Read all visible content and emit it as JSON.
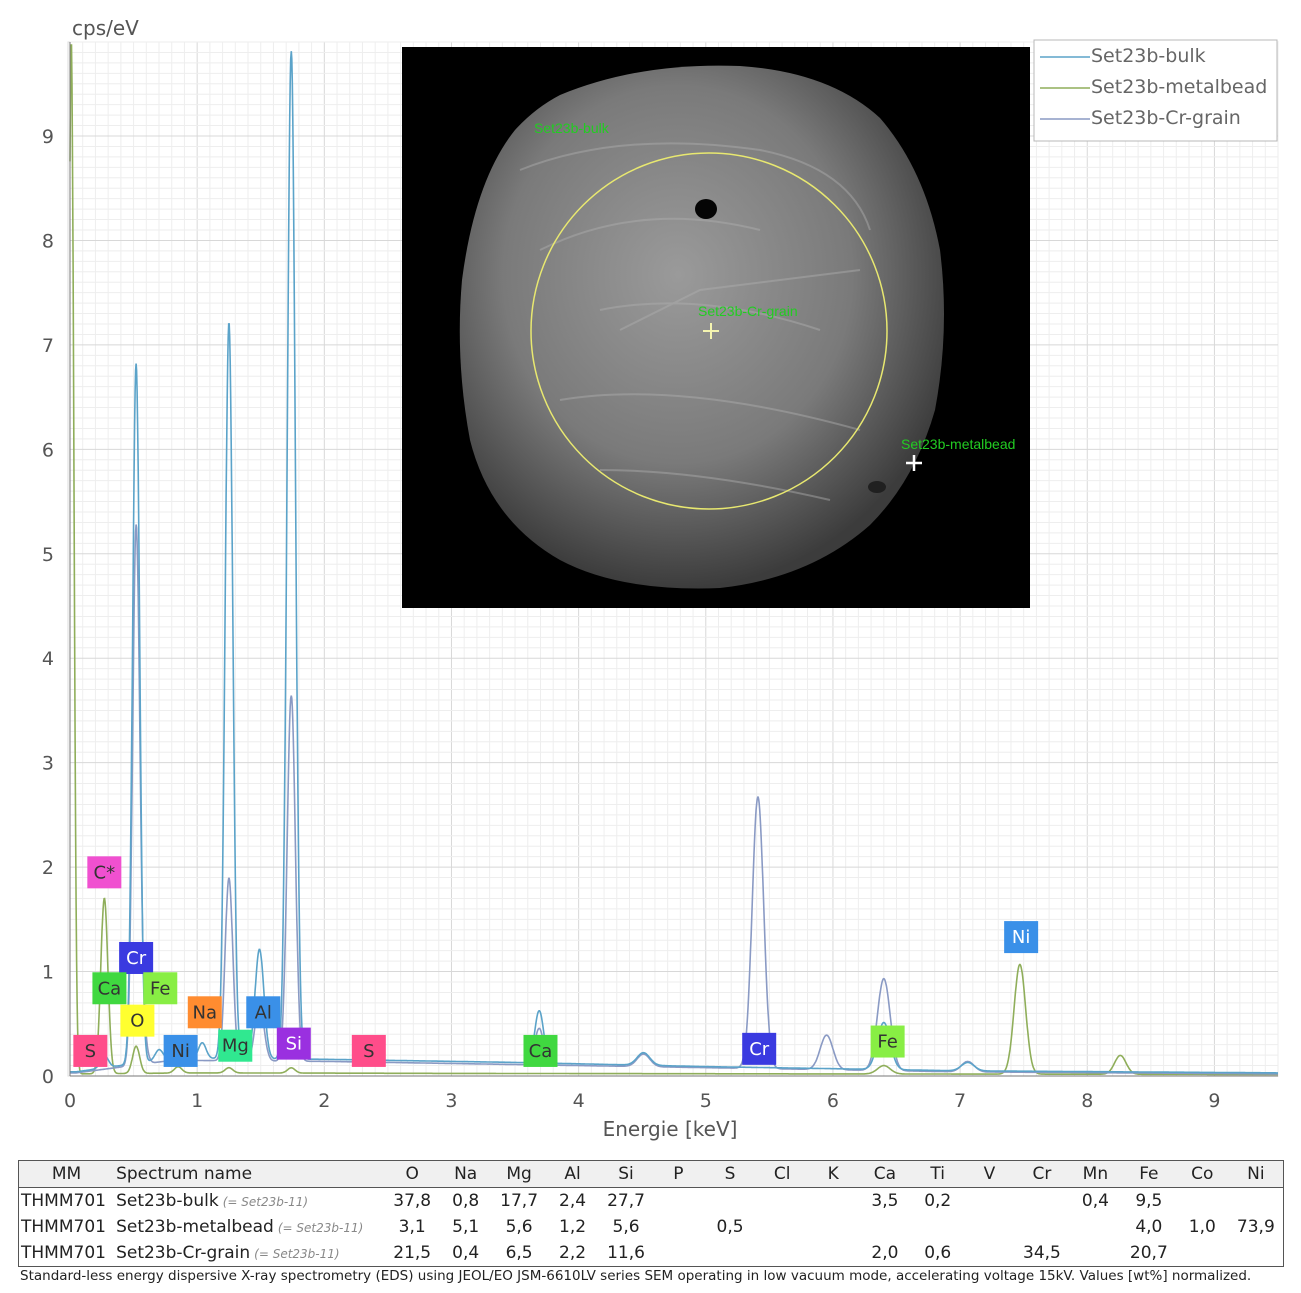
{
  "chart_data": {
    "type": "line",
    "xlabel": "Energie [keV]",
    "ylabel": "cps/eV",
    "xlim": [
      0,
      9.5
    ],
    "ylim": [
      0,
      9.9
    ],
    "xticks": [
      0,
      1,
      2,
      3,
      4,
      5,
      6,
      7,
      8,
      9
    ],
    "yticks": [
      0,
      1,
      2,
      3,
      4,
      5,
      6,
      7,
      8,
      9
    ],
    "grid": true,
    "legend_position": "top-right",
    "series": [
      {
        "name": "Set23b-bulk",
        "color": "#5ba3c9",
        "baseline": [
          [
            0.05,
            0.04
          ],
          [
            0.8,
            0.17
          ],
          [
            2.0,
            0.16
          ],
          [
            3.5,
            0.13
          ],
          [
            5.0,
            0.09
          ],
          [
            7.0,
            0.05
          ],
          [
            9.5,
            0.03
          ]
        ],
        "peaks": [
          {
            "x": 0.52,
            "y": 6.7,
            "w": 0.028
          },
          {
            "x": 0.27,
            "y": 0.12,
            "w": 0.03
          },
          {
            "x": 0.7,
            "y": 0.1,
            "w": 0.03
          },
          {
            "x": 1.04,
            "y": 0.15,
            "w": 0.03
          },
          {
            "x": 1.25,
            "y": 7.05,
            "w": 0.03
          },
          {
            "x": 1.49,
            "y": 1.05,
            "w": 0.035
          },
          {
            "x": 1.74,
            "y": 9.65,
            "w": 0.032
          },
          {
            "x": 3.69,
            "y": 0.5,
            "w": 0.035
          },
          {
            "x": 4.51,
            "y": 0.12,
            "w": 0.05
          },
          {
            "x": 6.4,
            "y": 0.45,
            "w": 0.05
          },
          {
            "x": 7.06,
            "y": 0.08,
            "w": 0.05
          }
        ]
      },
      {
        "name": "Set23b-metalbead",
        "color": "#8fae5a",
        "baseline": [
          [
            0.05,
            0.02
          ],
          [
            1.0,
            0.03
          ],
          [
            3.0,
            0.025
          ],
          [
            6.0,
            0.02
          ],
          [
            9.5,
            0.015
          ]
        ],
        "peaks": [
          {
            "x": 0.01,
            "y": 9.9,
            "w": 0.02
          },
          {
            "x": 0.27,
            "y": 1.68,
            "w": 0.028
          },
          {
            "x": 0.52,
            "y": 0.26,
            "w": 0.028
          },
          {
            "x": 0.85,
            "y": 0.06,
            "w": 0.03
          },
          {
            "x": 1.25,
            "y": 0.05,
            "w": 0.03
          },
          {
            "x": 1.74,
            "y": 0.05,
            "w": 0.03
          },
          {
            "x": 6.4,
            "y": 0.08,
            "w": 0.05
          },
          {
            "x": 7.47,
            "y": 1.05,
            "w": 0.045
          },
          {
            "x": 8.26,
            "y": 0.18,
            "w": 0.045
          }
        ]
      },
      {
        "name": "Set23b-Cr-grain",
        "color": "#8a9ac4",
        "baseline": [
          [
            0.05,
            0.03
          ],
          [
            0.8,
            0.15
          ],
          [
            2.0,
            0.14
          ],
          [
            3.5,
            0.11
          ],
          [
            5.0,
            0.08
          ],
          [
            7.0,
            0.04
          ],
          [
            9.5,
            0.02
          ]
        ],
        "peaks": [
          {
            "x": 0.52,
            "y": 5.1,
            "w": 0.028
          },
          {
            "x": 0.57,
            "y": 0.3,
            "w": 0.03
          },
          {
            "x": 1.25,
            "y": 1.75,
            "w": 0.03
          },
          {
            "x": 1.49,
            "y": 0.55,
            "w": 0.035
          },
          {
            "x": 1.74,
            "y": 3.5,
            "w": 0.032
          },
          {
            "x": 3.69,
            "y": 0.35,
            "w": 0.035
          },
          {
            "x": 4.51,
            "y": 0.12,
            "w": 0.05
          },
          {
            "x": 5.41,
            "y": 2.6,
            "w": 0.045
          },
          {
            "x": 5.95,
            "y": 0.33,
            "w": 0.05
          },
          {
            "x": 6.4,
            "y": 0.88,
            "w": 0.05
          },
          {
            "x": 7.06,
            "y": 0.1,
            "w": 0.05
          }
        ]
      }
    ],
    "element_labels": [
      {
        "text": "C*",
        "x": 0.27,
        "y": 1.95,
        "color": "#f050d0",
        "text_color": "#333333"
      },
      {
        "text": "Cr",
        "x": 0.52,
        "y": 1.13,
        "color": "#3a3ae0",
        "text_color": "#ffffff"
      },
      {
        "text": "Ca",
        "x": 0.31,
        "y": 0.84,
        "color": "#40d840",
        "text_color": "#333333"
      },
      {
        "text": "Fe",
        "x": 0.71,
        "y": 0.84,
        "color": "#88ee44",
        "text_color": "#333333"
      },
      {
        "text": "O",
        "x": 0.53,
        "y": 0.53,
        "color": "#ffff30",
        "text_color": "#333333"
      },
      {
        "text": "Na",
        "x": 1.06,
        "y": 0.61,
        "color": "#ff8c30",
        "text_color": "#333333"
      },
      {
        "text": "Al",
        "x": 1.52,
        "y": 0.61,
        "color": "#3a90e8",
        "text_color": "#333333"
      },
      {
        "text": "S",
        "x": 0.16,
        "y": 0.24,
        "color": "#ff4d8a",
        "text_color": "#333333"
      },
      {
        "text": "Ni",
        "x": 0.87,
        "y": 0.24,
        "color": "#3a90e8",
        "text_color": "#333333"
      },
      {
        "text": "Mg",
        "x": 1.3,
        "y": 0.29,
        "color": "#30e890",
        "text_color": "#333333"
      },
      {
        "text": "Si",
        "x": 1.76,
        "y": 0.31,
        "color": "#9a30e0",
        "text_color": "#ffffff"
      },
      {
        "text": "S",
        "x": 2.35,
        "y": 0.24,
        "color": "#ff4d8a",
        "text_color": "#333333"
      },
      {
        "text": "Ca",
        "x": 3.7,
        "y": 0.24,
        "color": "#40d840",
        "text_color": "#333333"
      },
      {
        "text": "Cr",
        "x": 5.42,
        "y": 0.26,
        "color": "#3a3ae0",
        "text_color": "#ffffff"
      },
      {
        "text": "Fe",
        "x": 6.43,
        "y": 0.33,
        "color": "#88ee44",
        "text_color": "#333333"
      },
      {
        "text": "Ni",
        "x": 7.48,
        "y": 1.33,
        "color": "#3a90e8",
        "text_color": "#ffffff"
      }
    ]
  },
  "sem_image": {
    "labels": {
      "bulk": "Set23b-bulk",
      "cr_grain": "Set23b-Cr-grain",
      "metalbead": "Set23b-metalbead"
    },
    "circle_color": "#e8e870",
    "label_color": "#22cc22"
  },
  "table": {
    "headers": {
      "mm": "MM",
      "name": "Spectrum name",
      "elements": [
        "O",
        "Na",
        "Mg",
        "Al",
        "Si",
        "P",
        "S",
        "Cl",
        "K",
        "Ca",
        "Ti",
        "V",
        "Cr",
        "Mn",
        "Fe",
        "Co",
        "Ni"
      ]
    },
    "rows": [
      {
        "mm": "THMM701",
        "name": "Set23b-bulk",
        "tag": "(= Set23b-11)",
        "values": [
          "37,8",
          "0,8",
          "17,7",
          "2,4",
          "27,7",
          "",
          "",
          "",
          "",
          "3,5",
          "0,2",
          "",
          "",
          "0,4",
          "9,5",
          "",
          ""
        ]
      },
      {
        "mm": "THMM701",
        "name": "Set23b-metalbead",
        "tag": "(= Set23b-11)",
        "values": [
          "3,1",
          "5,1",
          "5,6",
          "1,2",
          "5,6",
          "",
          "0,5",
          "",
          "",
          "",
          "",
          "",
          "",
          "",
          "4,0",
          "1,0",
          "73,9"
        ]
      },
      {
        "mm": "THMM701",
        "name": "Set23b-Cr-grain",
        "tag": "(= Set23b-11)",
        "values": [
          "21,5",
          "0,4",
          "6,5",
          "2,2",
          "11,6",
          "",
          "",
          "",
          "",
          "2,0",
          "0,6",
          "",
          "34,5",
          "",
          "20,7",
          "",
          ""
        ]
      }
    ]
  },
  "footnote": "Standard-less energy dispersive X-ray spectrometry (EDS) using JEOL/EO JSM-6610LV series SEM operating in low vacuum mode, accelerating voltage 15kV. Values [wt%] normalized."
}
